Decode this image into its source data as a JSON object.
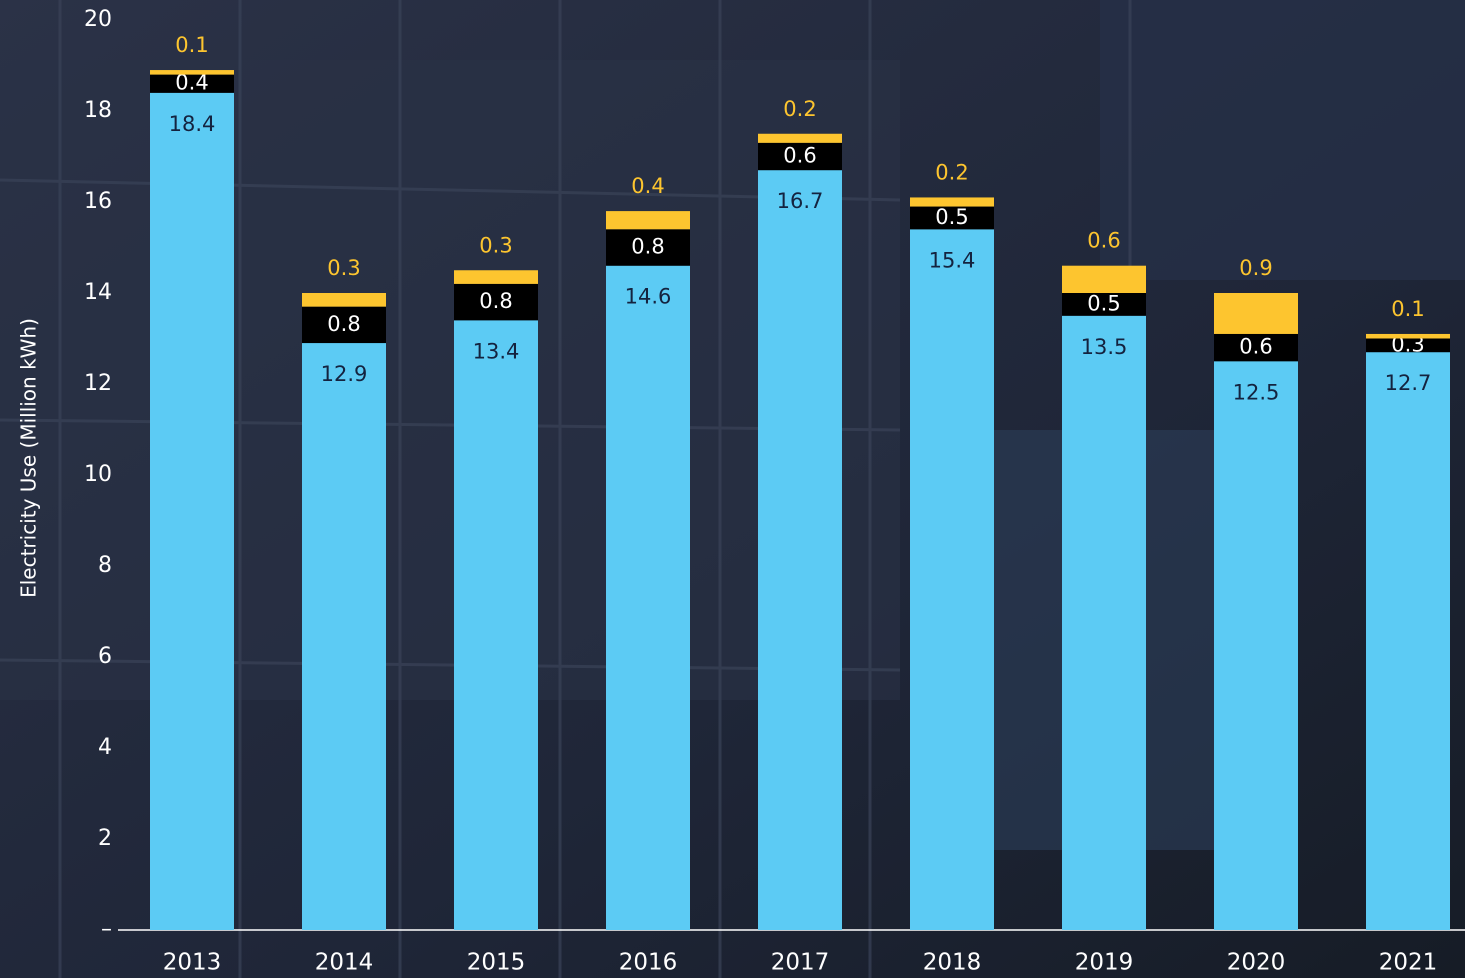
{
  "chart_data": {
    "type": "stacked-bar",
    "y_label": "Electricity Use (Million kWh)",
    "categories": [
      "2013",
      "2014",
      "2015",
      "2016",
      "2017",
      "2018",
      "2019",
      "2020",
      "2021"
    ],
    "series": [
      {
        "color": "#5ccbf4",
        "label_color": "#14233f",
        "values": [
          18.4,
          12.9,
          13.4,
          14.6,
          16.7,
          15.4,
          13.5,
          12.5,
          12.7
        ]
      },
      {
        "color": "#000000",
        "label_color": "#ffffff",
        "values": [
          0.4,
          0.8,
          0.8,
          0.8,
          0.6,
          0.5,
          0.5,
          0.6,
          0.3
        ]
      },
      {
        "color": "#fdc52f",
        "label_color": "#fdc52f",
        "values": [
          0.1,
          0.3,
          0.3,
          0.4,
          0.2,
          0.2,
          0.6,
          0.9,
          0.1
        ]
      }
    ],
    "ylim": [
      0,
      20
    ],
    "yticks": [
      {
        "value": 0,
        "label": "–"
      },
      2,
      4,
      6,
      8,
      10,
      12,
      14,
      16,
      18,
      20
    ]
  }
}
